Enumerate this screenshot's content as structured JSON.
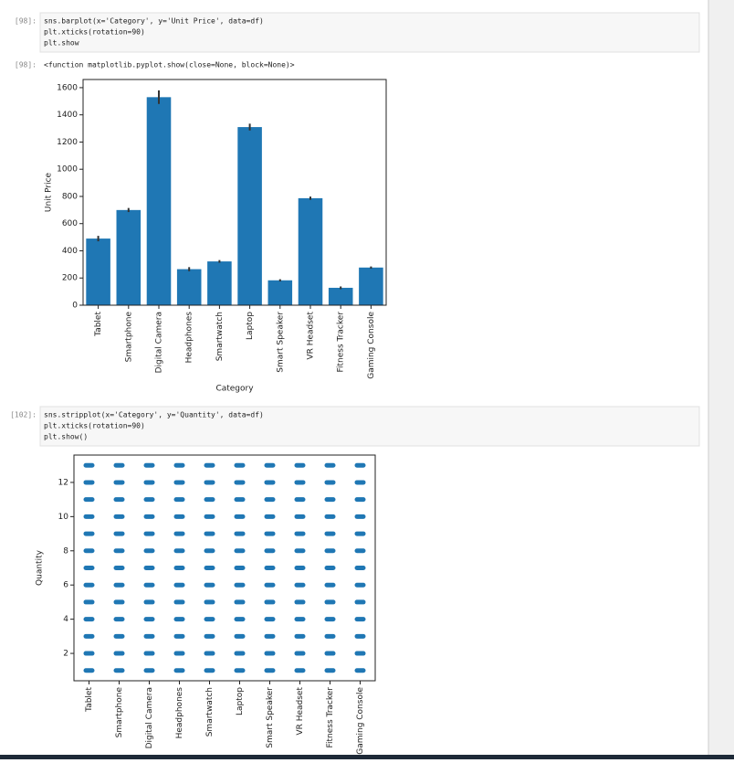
{
  "cells": [
    {
      "prompt": "[98]:",
      "code": [
        "sns.barplot(x='Category', y='Unit Price', data=df)",
        "plt.xticks(rotation=90)",
        "plt.show"
      ],
      "output_prompt": "[98]:",
      "output": "<function matplotlib.pyplot.show(close=None, block=None)>"
    },
    {
      "prompt": "[102]:",
      "code": [
        "sns.stripplot(x='Category', y='Quantity', data=df)",
        "plt.xticks(rotation=90)",
        "plt.show()"
      ]
    }
  ],
  "chart_data": [
    {
      "type": "bar",
      "xlabel": "Category",
      "ylabel": "Unit Price",
      "color": "#1f77b4",
      "categories": [
        "Tablet",
        "Smartphone",
        "Digital Camera",
        "Headphones",
        "Smartwatch",
        "Laptop",
        "Smart Speaker",
        "VR Headset",
        "Fitness Tracker",
        "Gaming Console"
      ],
      "values": [
        490,
        700,
        1530,
        265,
        322,
        1310,
        183,
        787,
        128,
        277
      ],
      "errors": [
        20,
        15,
        50,
        15,
        10,
        25,
        8,
        12,
        10,
        8
      ],
      "ylim": [
        0,
        1660
      ],
      "yticks": [
        0,
        200,
        400,
        600,
        800,
        1000,
        1200,
        1400,
        1600
      ]
    },
    {
      "type": "strip",
      "ylabel": "Quantity",
      "color": "#1f77b4",
      "categories": [
        "Tablet",
        "Smartphone",
        "Digital Camera",
        "Headphones",
        "Smartwatch",
        "Laptop",
        "Smart Speaker",
        "VR Headset",
        "Fitness Tracker",
        "Gaming Console"
      ],
      "values": [
        [
          1,
          2,
          3,
          4,
          5,
          6,
          7,
          8,
          9,
          10,
          11,
          12,
          13
        ],
        [
          1,
          2,
          3,
          4,
          5,
          6,
          7,
          8,
          9,
          10,
          11,
          12,
          13
        ],
        [
          1,
          2,
          3,
          4,
          5,
          6,
          7,
          8,
          9,
          10,
          11,
          12,
          13
        ],
        [
          1,
          2,
          3,
          4,
          5,
          6,
          7,
          8,
          9,
          10,
          11,
          12,
          13
        ],
        [
          1,
          2,
          3,
          4,
          5,
          6,
          7,
          8,
          9,
          10,
          11,
          12,
          13
        ],
        [
          1,
          2,
          3,
          4,
          5,
          6,
          7,
          8,
          9,
          10,
          11,
          12,
          13
        ],
        [
          1,
          2,
          3,
          4,
          5,
          6,
          7,
          8,
          9,
          10,
          11,
          12,
          13
        ],
        [
          1,
          2,
          3,
          4,
          5,
          6,
          7,
          8,
          9,
          10,
          11,
          12,
          13
        ],
        [
          1,
          2,
          3,
          4,
          5,
          6,
          7,
          8,
          9,
          10,
          11,
          12,
          13
        ],
        [
          1,
          2,
          3,
          4,
          5,
          6,
          7,
          8,
          9,
          10,
          11,
          12,
          13
        ]
      ],
      "ylim": [
        0.4,
        13.6
      ],
      "yticks": [
        2,
        4,
        6,
        8,
        10,
        12
      ]
    }
  ]
}
